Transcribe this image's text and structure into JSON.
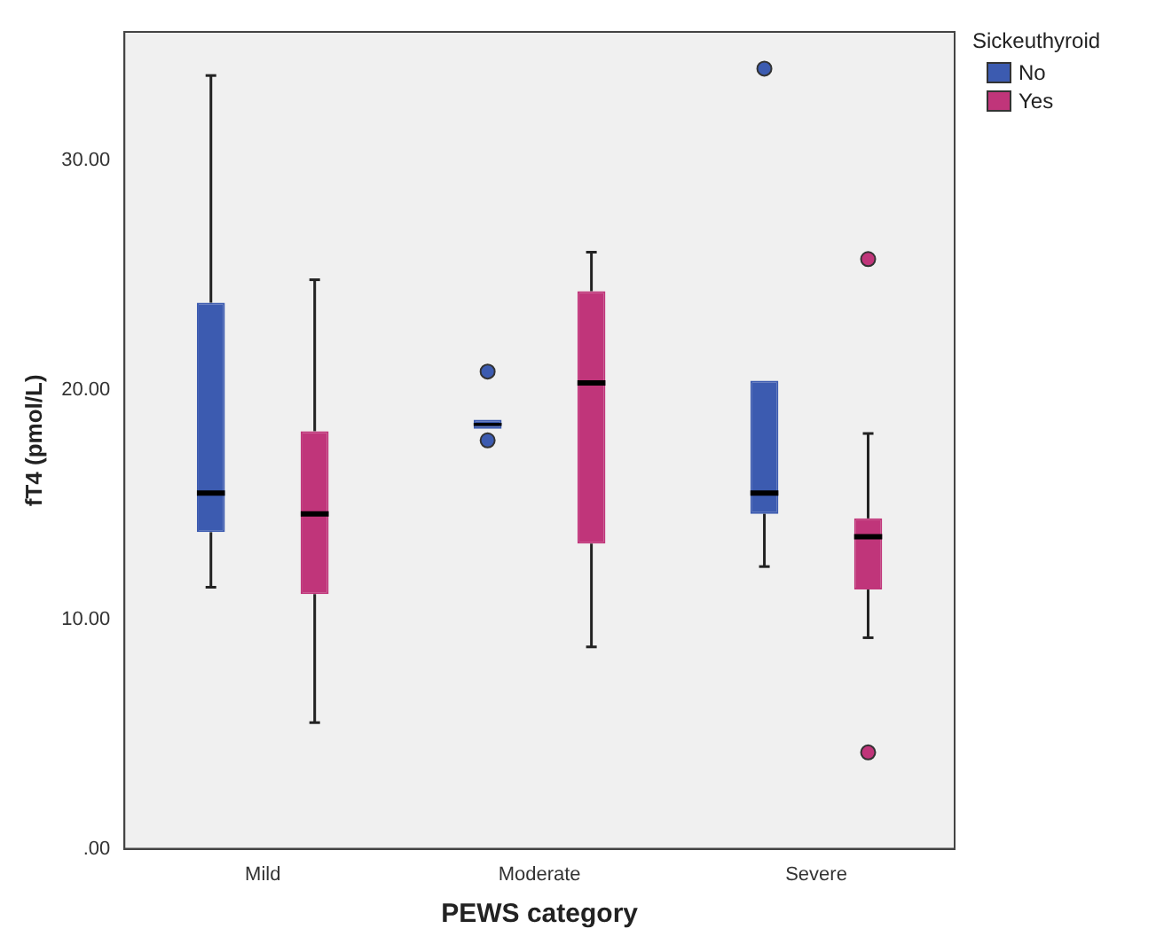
{
  "chart_data": {
    "type": "box",
    "xlabel": "PEWS category",
    "ylabel": "fT4 (pmol/L)",
    "legend_title": "Sickeuthyroid",
    "categories": [
      "Mild",
      "Moderate",
      "Severe"
    ],
    "ylim": [
      0,
      35.6
    ],
    "yticks": [
      {
        "value": 0,
        "label": ".00"
      },
      {
        "value": 10,
        "label": "10.00"
      },
      {
        "value": 20,
        "label": "20.00"
      },
      {
        "value": 30,
        "label": "30.00"
      }
    ],
    "grid": false,
    "legend": "top right",
    "series": [
      {
        "name": "No",
        "color": "#3c5bb0",
        "boxes": [
          {
            "low": 11.4,
            "q1": 13.8,
            "median": 15.5,
            "q3": 23.8,
            "high": 33.7
          },
          {
            "low": 18.3,
            "q1": 18.3,
            "median": 18.5,
            "q3": 18.7,
            "high": 18.7,
            "outliers": [
              17.8,
              20.8
            ]
          },
          {
            "low": 12.3,
            "q1": 14.6,
            "median": 15.5,
            "q3": 20.4,
            "high": 20.4,
            "outliers": [
              34.0
            ]
          }
        ]
      },
      {
        "name": "Yes",
        "color": "#c0357a",
        "boxes": [
          {
            "low": 5.5,
            "q1": 11.1,
            "median": 14.6,
            "q3": 18.2,
            "high": 24.8
          },
          {
            "low": 8.8,
            "q1": 13.3,
            "median": 20.3,
            "q3": 24.3,
            "high": 26.0
          },
          {
            "low": 9.2,
            "q1": 11.3,
            "median": 13.6,
            "q3": 14.4,
            "high": 18.1,
            "outliers": [
              25.7,
              4.2
            ]
          }
        ]
      }
    ]
  }
}
